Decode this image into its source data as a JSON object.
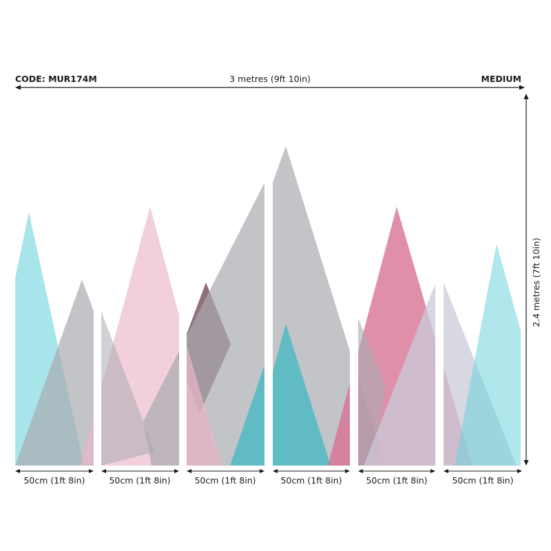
{
  "header": {
    "code_label": "CODE: MUR174M",
    "width_label": "3 metres (9ft 10in)",
    "size_label": "MEDIUM"
  },
  "height_label": "2.4 metres (7ft 10in)",
  "panels": [
    {
      "label": "50cm (1ft 8in)"
    },
    {
      "label": "50cm (1ft 8in)"
    },
    {
      "label": "50cm (1ft 8in)"
    },
    {
      "label": "50cm (1ft 8in)"
    },
    {
      "label": "50cm (1ft 8in)"
    },
    {
      "label": "50cm (1ft 8in)"
    }
  ],
  "colors": {
    "cyan": "#6ed4dd",
    "pink": "#e9b6c8",
    "grey": "#a9abb0",
    "rose": "#d76f93",
    "plum": "#7c5864",
    "lavender": "#c9cbd8",
    "text": "#1a1a1a"
  }
}
